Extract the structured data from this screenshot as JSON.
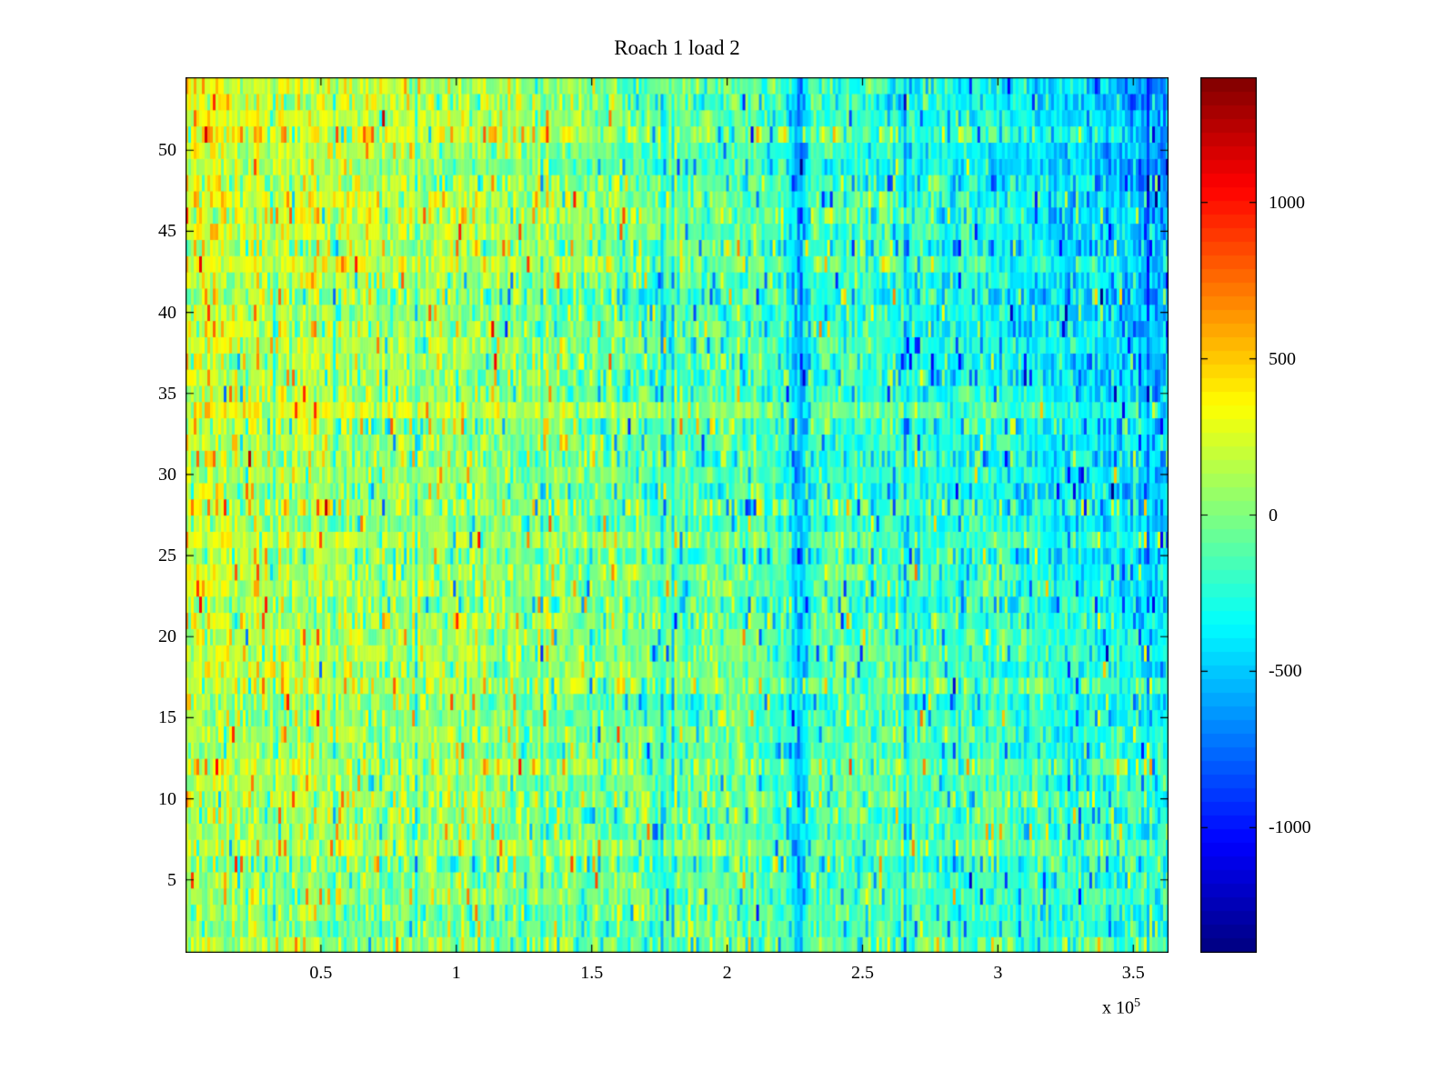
{
  "chart_data": {
    "type": "heatmap",
    "title": "Roach 1 load 2",
    "xlabel": "",
    "ylabel": "",
    "x_range": [
      0,
      363000
    ],
    "x_tick_values": [
      50000,
      100000,
      150000,
      200000,
      250000,
      300000,
      350000
    ],
    "x_tick_labels": [
      "0.5",
      "1",
      "1.5",
      "2",
      "2.5",
      "3",
      "3.5"
    ],
    "x_exponent_text": "x 10",
    "x_exponent": "5",
    "y_range": [
      0.5,
      54.5
    ],
    "y_tick_values": [
      5,
      10,
      15,
      20,
      25,
      30,
      35,
      40,
      45,
      50
    ],
    "y_tick_labels": [
      "5",
      "10",
      "15",
      "20",
      "25",
      "30",
      "35",
      "40",
      "45",
      "50"
    ],
    "rows": 54,
    "cols": 360,
    "colormap": "jet",
    "color_levels": 64,
    "clim": [
      -1400,
      1400
    ],
    "grid": false,
    "legend": "colorbar-right",
    "colorbar_tick_values": [
      1000,
      500,
      0,
      -500,
      -1000
    ],
    "colorbar_tick_labels": [
      "1000",
      "500",
      "0",
      "-500",
      "-1000"
    ],
    "pattern": {
      "description": "Noisy pcolor-style heatmap: warm orange/yellow region (~ +250 to +500) in the upper-left fading across to cool cyan/blue (~ -350 to -600) on the upper-right; lower rows more muted green/yellow; a narrow dark-blue vertical stripe at x ~ 2.27e5 spanning the full height; extra blue patch at the far right near the top; fine per-cell speckle noise with occasional red and deep-blue spikes and visible row banding.",
      "seed": 1337,
      "base_left": 230,
      "base_right": -330,
      "vertical_gain_bottom": 0.5,
      "vertical_gain_top": 1.35,
      "row_offset_std": 55,
      "row_scale_min": 0.75,
      "row_scale_span": 0.6,
      "col_offset_std": 45,
      "col_streak_prob": 0.02,
      "col_streak_amp": 220,
      "noise_std": 165,
      "spike_prob": 0.06,
      "spike_min": 250,
      "spike_max": 700,
      "spike_trend_bias": 0.65,
      "stripe_x": 0.625,
      "stripe_width": 0.006,
      "stripe_amp": 420,
      "corner_amp": 200
    }
  },
  "colors": {
    "background": "#ffffff",
    "axis": "#000000",
    "text": "#000000"
  }
}
